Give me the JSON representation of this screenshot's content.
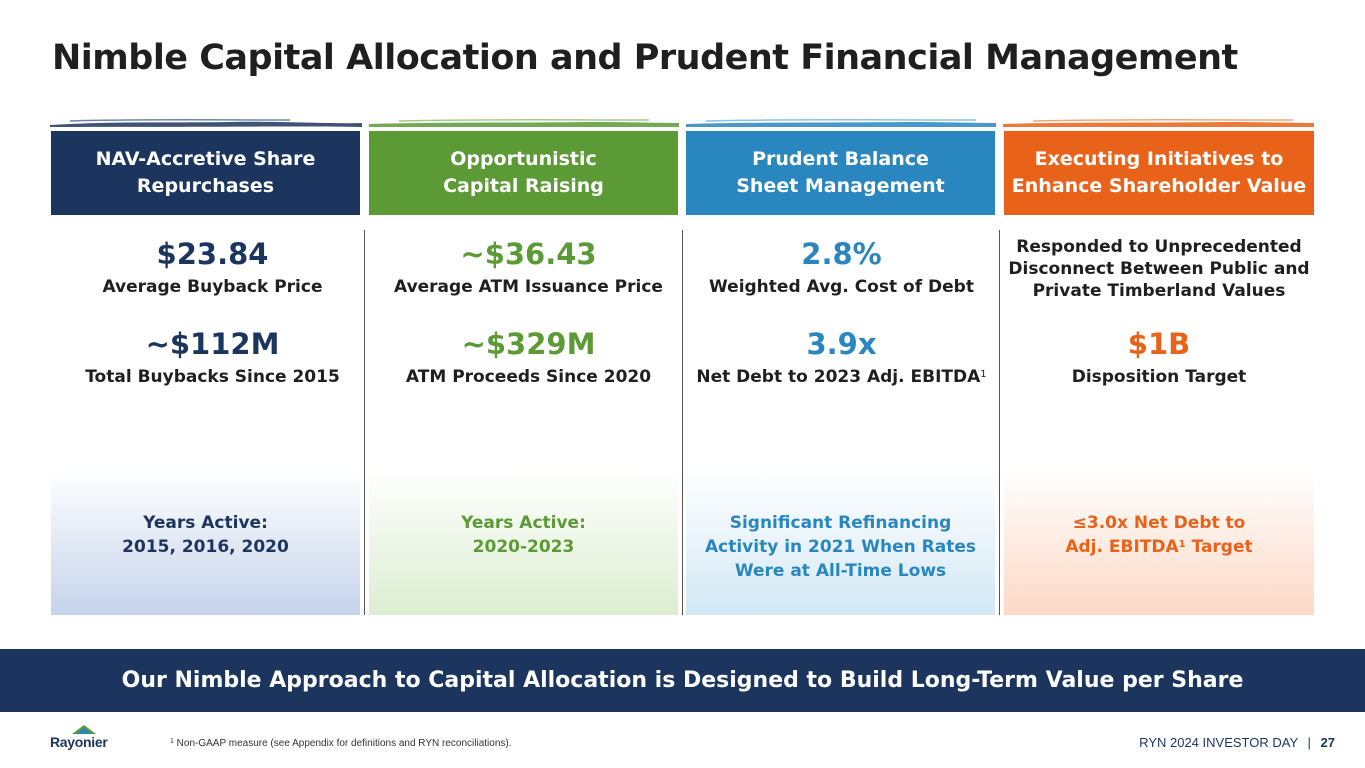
{
  "title": "Nimble Capital Allocation and Prudent Financial Management",
  "colors": {
    "navy": "#1c355e",
    "green": "#5b9a35",
    "blue": "#2a86bf",
    "orange": "#e9621a"
  },
  "columns": [
    {
      "header": "NAV-Accretive Share\nRepurchases",
      "m1_value": "$23.84",
      "m1_label": "Average Buyback Price",
      "m2_value": "~$112M",
      "m2_label": "Total Buybacks Since 2015",
      "bottom": "Years Active:\n2015, 2016, 2020"
    },
    {
      "header": "Opportunistic\nCapital Raising",
      "m1_value": "~$36.43",
      "m1_label": "Average ATM Issuance Price",
      "m2_value": "~$329M",
      "m2_label": "ATM Proceeds Since 2020",
      "bottom": "Years Active:\n2020-2023"
    },
    {
      "header": "Prudent Balance\nSheet Management",
      "m1_value": "2.8%",
      "m1_label": "Weighted Avg. Cost of Debt",
      "m2_value": "3.9x",
      "m2_label": "Net Debt to 2023 Adj. EBITDA",
      "m2_sup": "1",
      "bottom": "Significant Refinancing\nActivity in 2021 When Rates\nWere at All-Time Lows"
    },
    {
      "header": "Executing Initiatives to\nEnhance Shareholder Value",
      "m1_label": "Responded to Unprecedented\nDisconnect Between Public and\nPrivate Timberland Values",
      "m2_value": "$1B",
      "m2_label": "Disposition Target",
      "bottom_a": "≤3.0x Net Debt to\nAdj. EBITDA",
      "bottom_sup": "1",
      "bottom_b": " Target"
    }
  ],
  "banner": "Our Nimble Approach to Capital Allocation is Designed to Build Long-Term Value per Share",
  "logo_text": "Rayonier",
  "footnote_sup": "1",
  "footnote": " Non-GAAP measure (see Appendix for definitions and RYN reconciliations).",
  "footer_event": "RYN 2024 INVESTOR DAY",
  "footer_sep": "|",
  "page_number": "27"
}
